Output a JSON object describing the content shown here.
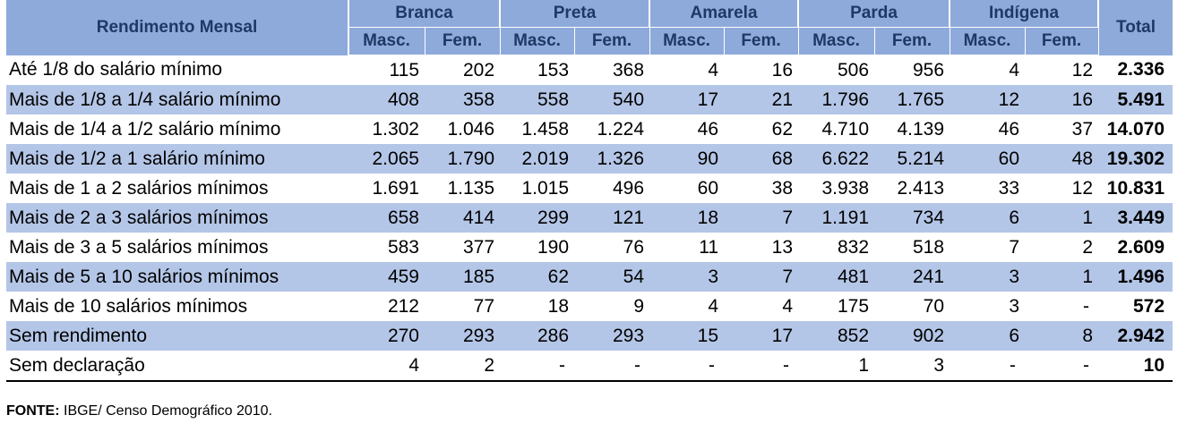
{
  "header": {
    "row_label": "Rendimento Mensal",
    "groups": [
      "Branca",
      "Preta",
      "Amarela",
      "Parda",
      "Indígena"
    ],
    "sub": [
      "Masc.",
      "Fem."
    ],
    "total": "Total"
  },
  "rows": [
    {
      "label": "Até 1/8 do salário mínimo",
      "values": [
        "115",
        "202",
        "153",
        "368",
        "4",
        "16",
        "506",
        "956",
        "4",
        "12"
      ],
      "total": "2.336"
    },
    {
      "label": "Mais de 1/8 a 1/4 salário mínimo",
      "values": [
        "408",
        "358",
        "558",
        "540",
        "17",
        "21",
        "1.796",
        "1.765",
        "12",
        "16"
      ],
      "total": "5.491"
    },
    {
      "label": "Mais de 1/4 a 1/2 salário mínimo",
      "values": [
        "1.302",
        "1.046",
        "1.458",
        "1.224",
        "46",
        "62",
        "4.710",
        "4.139",
        "46",
        "37"
      ],
      "total": "14.070"
    },
    {
      "label": "Mais de 1/2 a 1 salário mínimo",
      "values": [
        "2.065",
        "1.790",
        "2.019",
        "1.326",
        "90",
        "68",
        "6.622",
        "5.214",
        "60",
        "48"
      ],
      "total": "19.302"
    },
    {
      "label": "Mais de 1 a 2 salários mínimos",
      "values": [
        "1.691",
        "1.135",
        "1.015",
        "496",
        "60",
        "38",
        "3.938",
        "2.413",
        "33",
        "12"
      ],
      "total": "10.831"
    },
    {
      "label": "Mais de 2 a 3 salários mínimos",
      "values": [
        "658",
        "414",
        "299",
        "121",
        "18",
        "7",
        "1.191",
        "734",
        "6",
        "1"
      ],
      "total": "3.449"
    },
    {
      "label": "Mais de 3 a 5 salários mínimos",
      "values": [
        "583",
        "377",
        "190",
        "76",
        "11",
        "13",
        "832",
        "518",
        "7",
        "2"
      ],
      "total": "2.609"
    },
    {
      "label": "Mais de 5 a 10 salários mínimos",
      "values": [
        "459",
        "185",
        "62",
        "54",
        "3",
        "7",
        "481",
        "241",
        "3",
        "1"
      ],
      "total": "1.496"
    },
    {
      "label": "Mais de 10 salários mínimos",
      "values": [
        "212",
        "77",
        "18",
        "9",
        "4",
        "4",
        "175",
        "70",
        "3",
        "-"
      ],
      "total": "572"
    },
    {
      "label": "Sem rendimento",
      "values": [
        "270",
        "293",
        "286",
        "293",
        "15",
        "17",
        "852",
        "902",
        "6",
        "8"
      ],
      "total": "2.942"
    },
    {
      "label": "Sem declaração",
      "values": [
        "4",
        "2",
        "-",
        "-",
        "-",
        "-",
        "1",
        "3",
        "-",
        "-"
      ],
      "total": "10"
    }
  ],
  "source": {
    "prefix": "FONTE:",
    "text": " IBGE/ Censo Demográfico 2010."
  },
  "colors": {
    "header_bg": "#8eaadb",
    "header_text": "#1f3864",
    "band_bg": "#b4c6e7"
  }
}
